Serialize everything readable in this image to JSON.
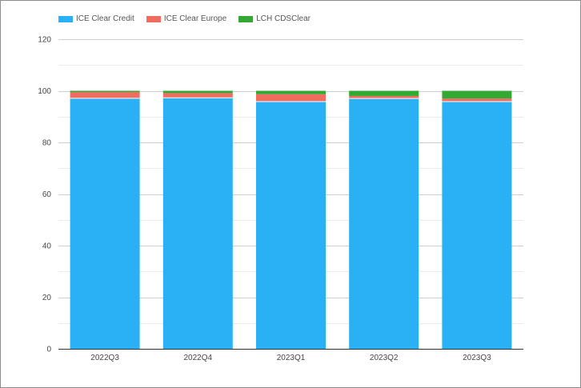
{
  "chart_data": {
    "type": "bar",
    "stacked": true,
    "categories": [
      "2022Q3",
      "2022Q4",
      "2023Q1",
      "2023Q2",
      "2023Q3"
    ],
    "series": [
      {
        "name": "ICE Clear Credit",
        "color": "#29b0f5",
        "values": [
          97.1,
          97.3,
          95.8,
          97.0,
          95.8
        ]
      },
      {
        "name": "ICE Clear Europe",
        "color": "#ef6c5f",
        "values": [
          2.4,
          1.8,
          2.9,
          1.0,
          1.2
        ]
      },
      {
        "name": "LCH CDSClear",
        "color": "#33a833",
        "values": [
          0.5,
          0.9,
          1.3,
          2.0,
          3.0
        ]
      }
    ],
    "y_ticks": [
      "0",
      "20",
      "40",
      "60",
      "80",
      "100",
      "120"
    ],
    "ylim": [
      0,
      120
    ],
    "grid": true,
    "legend_position": "top-left"
  }
}
